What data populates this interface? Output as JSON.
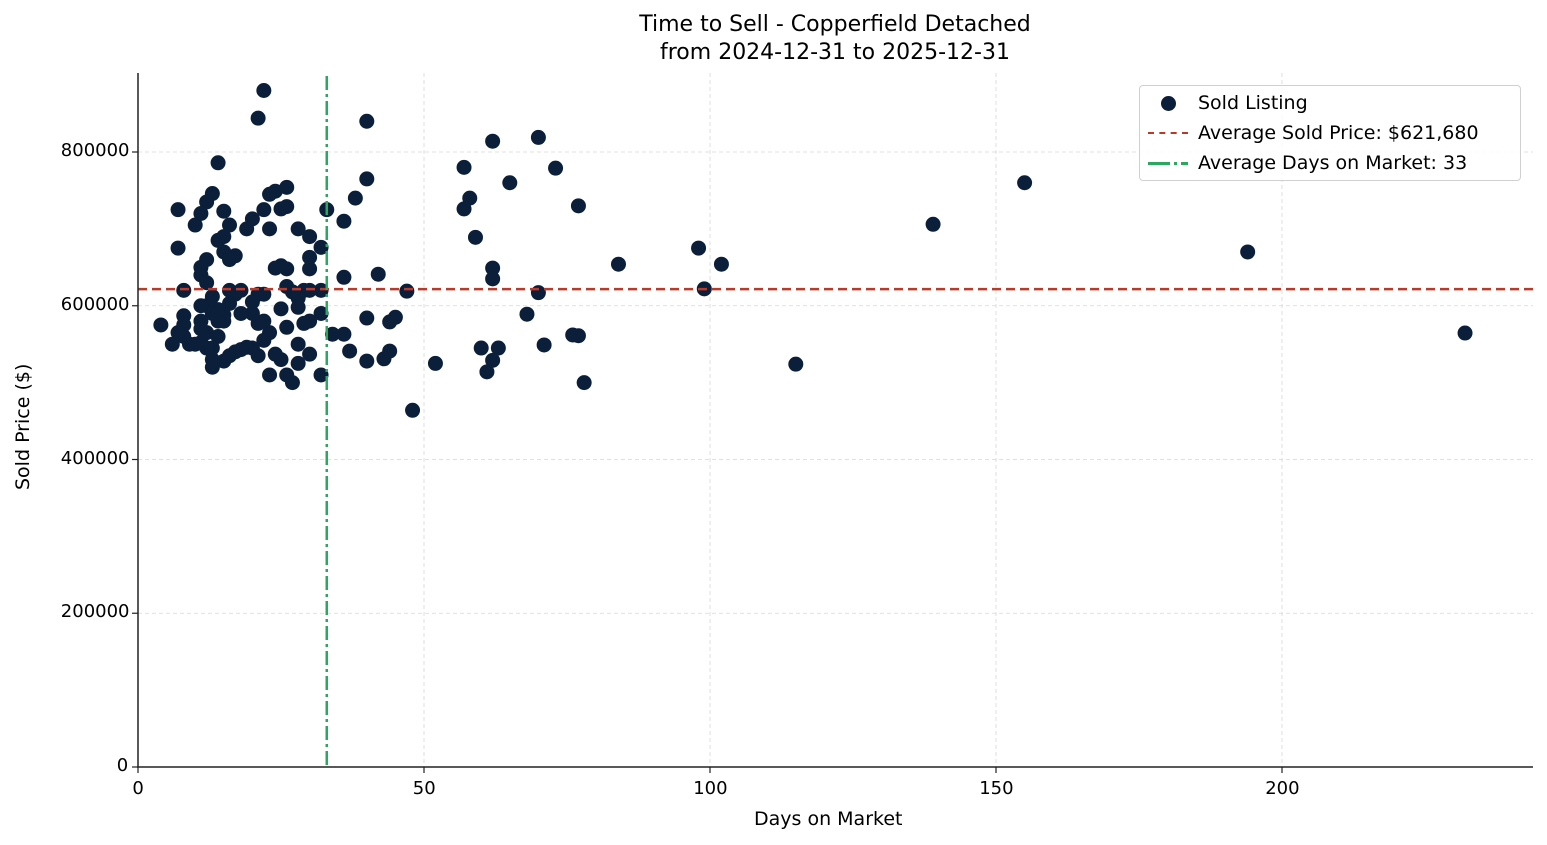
{
  "chart_data": {
    "type": "scatter",
    "title": "Time to Sell - Copperfield Detached",
    "subtitle": "from 2024-12-31 to 2025-12-31",
    "xlabel": "Days on Market",
    "ylabel": "Sold Price ($)",
    "xlim": [
      0,
      244
    ],
    "ylim": [
      0,
      900000
    ],
    "xticks": [
      0,
      50,
      100,
      150,
      200
    ],
    "xtick_labels": [
      "0",
      "50",
      "100",
      "150",
      "200"
    ],
    "yticks": [
      0,
      200000,
      400000,
      600000,
      800000
    ],
    "ytick_labels": [
      "0",
      "200000",
      "400000",
      "600000",
      "800000"
    ],
    "grid": true,
    "legend_position": "upper right",
    "legend": [
      {
        "label": "Sold Listing",
        "type": "marker",
        "color": "#0b1f3a"
      },
      {
        "label": "Average Sold Price: $621,680",
        "type": "dashed-line",
        "color": "#b83a2a"
      },
      {
        "label": "Average Days on Market: 33",
        "type": "dashdot-line",
        "color": "#2aa860"
      }
    ],
    "reference_lines": {
      "average_sold_price": 621680,
      "average_days_on_market": 33
    },
    "series": [
      {
        "name": "Sold Listing",
        "color": "#0b1f3a",
        "points": [
          [
            232,
            564500
          ],
          [
            194,
            670000
          ],
          [
            155,
            760000
          ],
          [
            139,
            706000
          ],
          [
            115,
            524000
          ],
          [
            102,
            654000
          ],
          [
            99,
            622000
          ],
          [
            98,
            675000
          ],
          [
            84,
            654000
          ],
          [
            78,
            500000
          ],
          [
            77,
            730000
          ],
          [
            77,
            561000
          ],
          [
            76,
            562000
          ],
          [
            73,
            779000
          ],
          [
            71,
            549000
          ],
          [
            70,
            819000
          ],
          [
            70,
            617000
          ],
          [
            68,
            589000
          ],
          [
            65,
            760000
          ],
          [
            63,
            545000
          ],
          [
            62,
            814000
          ],
          [
            62,
            649000
          ],
          [
            62,
            635000
          ],
          [
            62,
            529000
          ],
          [
            61,
            514000
          ],
          [
            60,
            545000
          ],
          [
            59,
            689000
          ],
          [
            58,
            740000
          ],
          [
            57,
            726000
          ],
          [
            57,
            780000
          ],
          [
            52,
            525000
          ],
          [
            48,
            464000
          ],
          [
            47,
            619000
          ],
          [
            45,
            585000
          ],
          [
            44,
            579000
          ],
          [
            44,
            541000
          ],
          [
            43,
            531000
          ],
          [
            42,
            641000
          ],
          [
            40,
            840000
          ],
          [
            40,
            765000
          ],
          [
            40,
            584000
          ],
          [
            40,
            528000
          ],
          [
            38,
            740000
          ],
          [
            37,
            541000
          ],
          [
            36,
            710000
          ],
          [
            36,
            637000
          ],
          [
            36,
            563000
          ],
          [
            34,
            563000
          ],
          [
            33,
            725000
          ],
          [
            32,
            676000
          ],
          [
            32,
            620000
          ],
          [
            32,
            590000
          ],
          [
            32,
            510000
          ],
          [
            30,
            690000
          ],
          [
            30,
            663000
          ],
          [
            30,
            648000
          ],
          [
            30,
            620000
          ],
          [
            30,
            580000
          ],
          [
            30,
            537000
          ],
          [
            29,
            577000
          ],
          [
            29,
            620000
          ],
          [
            28,
            700000
          ],
          [
            28,
            610000
          ],
          [
            28,
            598000
          ],
          [
            28,
            550000
          ],
          [
            28,
            525000
          ],
          [
            27,
            618000
          ],
          [
            27,
            500000
          ],
          [
            26,
            754000
          ],
          [
            26,
            729000
          ],
          [
            26,
            648000
          ],
          [
            26,
            572000
          ],
          [
            26,
            625000
          ],
          [
            26,
            510000
          ],
          [
            25,
            726000
          ],
          [
            25,
            652000
          ],
          [
            25,
            596000
          ],
          [
            25,
            530000
          ],
          [
            24,
            749000
          ],
          [
            24,
            649000
          ],
          [
            24,
            537000
          ],
          [
            23,
            745000
          ],
          [
            23,
            700000
          ],
          [
            23,
            565000
          ],
          [
            23,
            510000
          ],
          [
            22,
            880000
          ],
          [
            22,
            725000
          ],
          [
            22,
            615000
          ],
          [
            22,
            580000
          ],
          [
            22,
            555000
          ],
          [
            21,
            844000
          ],
          [
            21,
            615000
          ],
          [
            21,
            577000
          ],
          [
            21,
            535000
          ],
          [
            20,
            713000
          ],
          [
            20,
            590000
          ],
          [
            20,
            545000
          ],
          [
            20,
            605000
          ],
          [
            19,
            700000
          ],
          [
            19,
            546000
          ],
          [
            18,
            620000
          ],
          [
            18,
            590000
          ],
          [
            18,
            543000
          ],
          [
            17,
            665000
          ],
          [
            17,
            615000
          ],
          [
            17,
            540000
          ],
          [
            16,
            705000
          ],
          [
            16,
            660000
          ],
          [
            16,
            620000
          ],
          [
            16,
            535000
          ],
          [
            16,
            603000
          ],
          [
            15,
            723000
          ],
          [
            15,
            690000
          ],
          [
            15,
            670000
          ],
          [
            15,
            588000
          ],
          [
            15,
            580000
          ],
          [
            15,
            528000
          ],
          [
            14,
            786000
          ],
          [
            14,
            685000
          ],
          [
            14,
            580000
          ],
          [
            14,
            560000
          ],
          [
            14,
            595000
          ],
          [
            13,
            746000
          ],
          [
            13,
            612000
          ],
          [
            13,
            590000
          ],
          [
            13,
            545000
          ],
          [
            13,
            530000
          ],
          [
            13,
            520000
          ],
          [
            12,
            735000
          ],
          [
            12,
            660000
          ],
          [
            12,
            630000
          ],
          [
            12,
            600000
          ],
          [
            12,
            565000
          ],
          [
            12,
            545000
          ],
          [
            11,
            720000
          ],
          [
            11,
            650000
          ],
          [
            11,
            640000
          ],
          [
            11,
            600000
          ],
          [
            11,
            580000
          ],
          [
            11,
            570000
          ],
          [
            11,
            552000
          ],
          [
            10,
            705000
          ],
          [
            10,
            550000
          ],
          [
            9,
            550000
          ],
          [
            8,
            620000
          ],
          [
            8,
            587000
          ],
          [
            8,
            575000
          ],
          [
            8,
            560000
          ],
          [
            7,
            725000
          ],
          [
            7,
            675000
          ],
          [
            7,
            565000
          ],
          [
            6,
            550000
          ],
          [
            4,
            575000
          ]
        ]
      }
    ]
  }
}
